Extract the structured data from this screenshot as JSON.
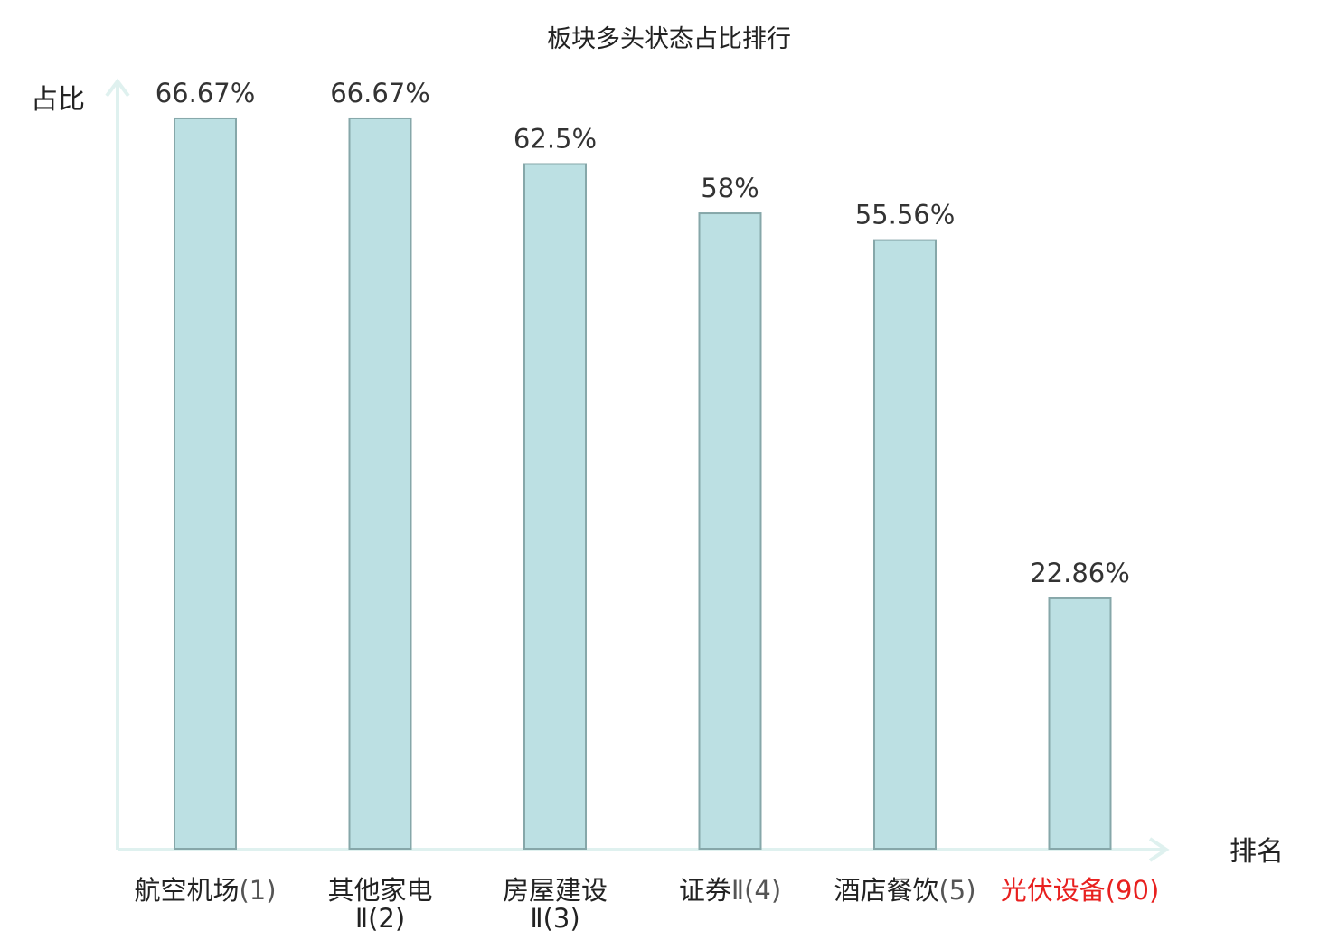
{
  "chart_data": {
    "type": "bar",
    "title": "板块多头状态占比排行",
    "ylabel": "占比",
    "xlabel": "排名",
    "ylim": [
      0,
      70
    ],
    "grid": false,
    "categories": [
      {
        "name": "航空机场",
        "rank": "(1)",
        "highlight": false
      },
      {
        "name": "其他家电",
        "rank": "Ⅱ(2)",
        "highlight": false
      },
      {
        "name": "房屋建设",
        "rank": "Ⅱ(3)",
        "highlight": false
      },
      {
        "name": "证券",
        "rank": "Ⅱ(4)",
        "highlight": false
      },
      {
        "name": "酒店餐饮",
        "rank": "(5)",
        "highlight": false
      },
      {
        "name": "光伏设备",
        "rank": "(90)",
        "highlight": true
      }
    ],
    "values": [
      66.67,
      66.67,
      62.5,
      58,
      55.56,
      22.86
    ],
    "value_labels": [
      "66.67%",
      "66.67%",
      "62.5%",
      "58%",
      "55.56%",
      "22.86%"
    ],
    "colors": {
      "bar_fill": "#bce0e3",
      "bar_stroke": "#86a7a9",
      "axis": "#dff1ef",
      "highlight": "#e8201f",
      "rank_text": "#555555"
    }
  }
}
